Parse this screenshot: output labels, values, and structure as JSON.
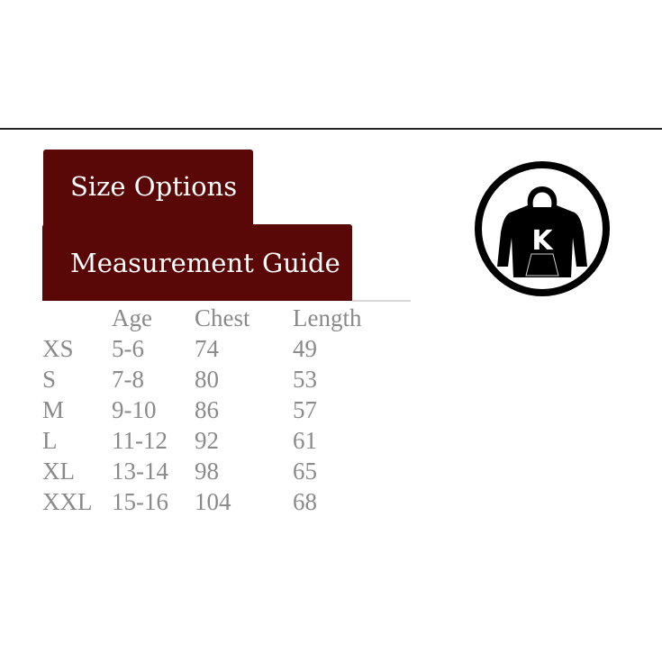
{
  "tabs": [
    {
      "label": "Size Options"
    },
    {
      "label": "Measurement Guide"
    }
  ],
  "colors": {
    "tab_bg": "#5a0707",
    "text": "#8a8a8a"
  },
  "logo": {
    "icon": "hoodie-k-logo",
    "letter": "K"
  },
  "table": {
    "headers": [
      "",
      "Age",
      "Chest",
      "Length"
    ],
    "rows": [
      [
        "XS",
        "5-6",
        "74",
        "49"
      ],
      [
        "S",
        "7-8",
        "80",
        "53"
      ],
      [
        "M",
        "9-10",
        "86",
        "57"
      ],
      [
        "L",
        "11-12",
        "92",
        "61"
      ],
      [
        "XL",
        "13-14",
        "98",
        "65"
      ],
      [
        "XXL",
        "15-16",
        "104",
        "68"
      ]
    ]
  }
}
